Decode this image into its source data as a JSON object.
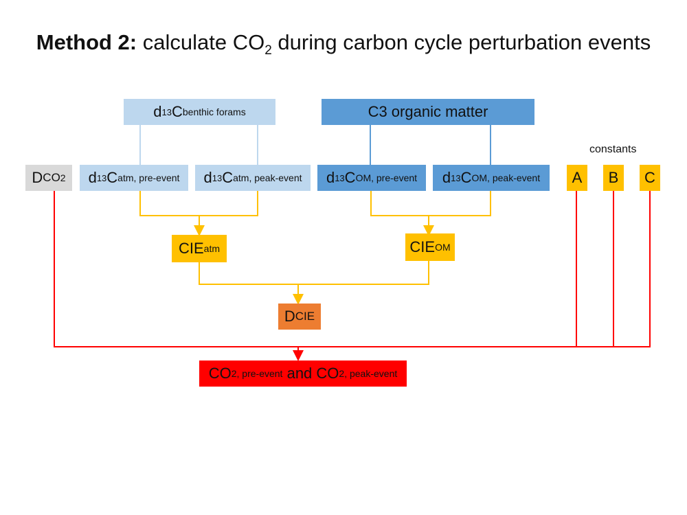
{
  "title": {
    "bold": "Method 2:",
    "pre": "calculate CO",
    "sub": "2",
    "post": "during carbon cycle perturbation events"
  },
  "boxes": {
    "benthic": {
      "pre": "d",
      "sup": "13",
      "main": "C",
      "sub": "benthic forams"
    },
    "c3": {
      "text": "C3 organic matter"
    },
    "dco2": {
      "big": "D",
      "small": "CO",
      "sub": "2"
    },
    "atm_pre": {
      "pre": "d",
      "sup": "13",
      "main": "C",
      "sub": "atm, pre-event"
    },
    "atm_peak": {
      "pre": "d",
      "sup": "13",
      "main": "C",
      "sub": "atm, peak-event"
    },
    "om_pre": {
      "pre": "d",
      "sup": "13",
      "main": "C",
      "sub": "OM, pre-event"
    },
    "om_peak": {
      "pre": "d",
      "sup": "13",
      "main": "C",
      "sub": "OM, peak-event"
    },
    "cie_atm": {
      "main": "CIE",
      "sub": "atm"
    },
    "cie_om": {
      "main": "CIE",
      "sub": "OM"
    },
    "dcie": {
      "big": "D",
      "small": "CIE"
    },
    "result": {
      "a": "CO",
      "a_sub": "2, pre-event",
      "mid": "and CO",
      "b_sub": "2, peak-event"
    }
  },
  "constants": {
    "label": "constants",
    "items": [
      "A",
      "B",
      "C"
    ]
  },
  "colors": {
    "light_blue": "#bdd7ee",
    "mid_blue": "#5b9bd5",
    "grey": "#d9d9d9",
    "yellow": "#ffc000",
    "orange": "#ed7d31",
    "red": "#ff0000"
  }
}
